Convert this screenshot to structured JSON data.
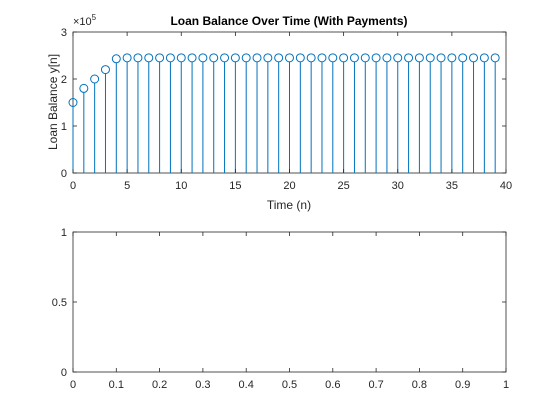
{
  "chart_data": [
    {
      "type": "stem",
      "title": "Loan Balance Over Time (With Payments)",
      "xlabel": "Time (n)",
      "ylabel": "Loan Balance y[n]",
      "exponent_label": "×10^5",
      "exponent_base": "×10",
      "exponent_power": "5",
      "xlim": [
        0,
        40
      ],
      "ylim": [
        0,
        300000
      ],
      "xticks": [
        0,
        5,
        10,
        15,
        20,
        25,
        30,
        35,
        40
      ],
      "yticks": [
        0,
        100000,
        200000,
        300000
      ],
      "ytick_labels": [
        "0",
        "1",
        "2",
        "3"
      ],
      "color": "#0072BD",
      "x": [
        0,
        1,
        2,
        3,
        4,
        5,
        6,
        7,
        8,
        9,
        10,
        11,
        12,
        13,
        14,
        15,
        16,
        17,
        18,
        19,
        20,
        21,
        22,
        23,
        24,
        25,
        26,
        27,
        28,
        29,
        30,
        31,
        32,
        33,
        34,
        35,
        36,
        37,
        38,
        39
      ],
      "y": [
        150000,
        180000,
        200000,
        220000,
        243000,
        245000,
        245000,
        245000,
        245000,
        245000,
        245000,
        245000,
        245000,
        245000,
        245000,
        245000,
        245000,
        245000,
        245000,
        245000,
        245000,
        245000,
        245000,
        245000,
        245000,
        245000,
        245000,
        245000,
        245000,
        245000,
        245000,
        245000,
        245000,
        245000,
        245000,
        245000,
        245000,
        245000,
        245000,
        245000
      ]
    },
    {
      "type": "empty",
      "xlim": [
        0,
        1
      ],
      "ylim": [
        0,
        1
      ],
      "xticks": [
        0,
        0.1,
        0.2,
        0.3,
        0.4,
        0.5,
        0.6,
        0.7,
        0.8,
        0.9,
        1
      ],
      "xtick_labels": [
        "0",
        "0.1",
        "0.2",
        "0.3",
        "0.4",
        "0.5",
        "0.6",
        "0.7",
        "0.8",
        "0.9",
        "1"
      ],
      "yticks": [
        0,
        0.5,
        1
      ],
      "ytick_labels": [
        "0",
        "0.5",
        "1"
      ]
    }
  ]
}
